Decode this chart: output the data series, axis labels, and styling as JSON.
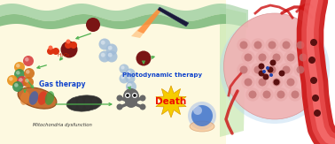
{
  "bg_left_color": "#fdf9e0",
  "cell_membrane_light": "#a8d4a8",
  "cell_membrane_dark": "#7ab87a",
  "dark_red": "#7a1515",
  "arrow_green": "#4db04d",
  "h2o2_red": "#cc2200",
  "blue_sphere": "#a0bcd8",
  "blue_sphere_dark": "#6a8eb8",
  "death_yellow": "#f5cc00",
  "death_red": "#ee1100",
  "gas_text_color": "#1144cc",
  "photo_text_color": "#1144cc",
  "mito_text_color": "#333333",
  "text_photo": "Photodynamic therapy",
  "text_gas": "Gas therapy",
  "text_mito": "Mitochondria dysfunction",
  "text_death": "Death",
  "tumor_pink": "#f2b0b0",
  "tumor_edge": "#d89090",
  "cell_body": "#eaadad",
  "cell_center": "#c07070",
  "vessel_dark": "#cc1111",
  "vessel_light": "#ee5555",
  "connector_green": "#c8e8b0",
  "nano_dark": "#5a1010",
  "nano_blue": "#2244aa"
}
